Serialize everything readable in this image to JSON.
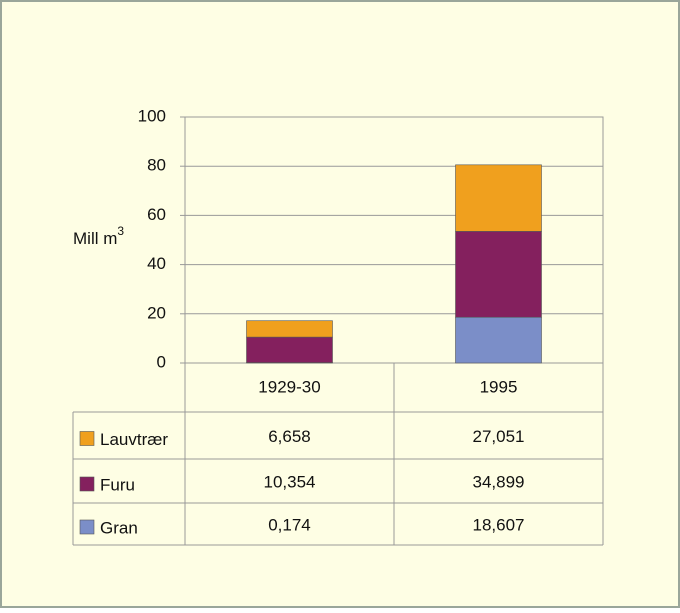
{
  "chart_data": {
    "type": "stacked_bar",
    "ylabel": "Mill m",
    "ylabel_superscript": "3",
    "categories": [
      "1929-30",
      "1995"
    ],
    "series": [
      {
        "name": "Lauvtrær",
        "color": "#f0a01e",
        "values": [
          6.658,
          27.051
        ],
        "value_labels": [
          "6,658",
          "27,051"
        ]
      },
      {
        "name": "Furu",
        "color": "#84205e",
        "values": [
          10.354,
          34.899
        ],
        "value_labels": [
          "10,354",
          "34,899"
        ]
      },
      {
        "name": "Gran",
        "color": "#7b8ec8",
        "values": [
          0.174,
          18.607
        ],
        "value_labels": [
          "0,174",
          "18,607"
        ]
      }
    ],
    "ylim": [
      0,
      100
    ],
    "yticks": [
      0,
      20,
      40,
      60,
      80,
      100
    ],
    "grid": true
  }
}
